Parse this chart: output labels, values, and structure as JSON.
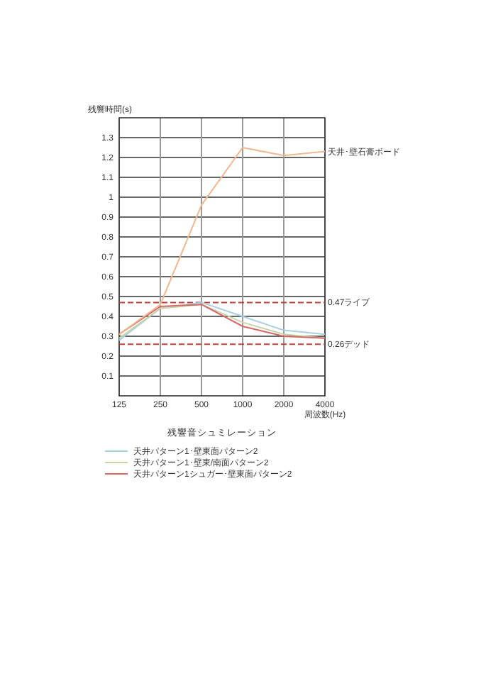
{
  "chart_data": {
    "type": "line",
    "title": "残響音シュミレーション",
    "ylabel": "残響時間(s)",
    "xlabel": "周波数(Hz)",
    "x": [
      125,
      250,
      500,
      1000,
      2000,
      4000
    ],
    "log": "x",
    "xlim": [
      125,
      4000
    ],
    "xticks": [
      125,
      250,
      500,
      1000,
      2000,
      4000
    ],
    "ylim": [
      0,
      1.4
    ],
    "yticks": [
      0.1,
      0.2,
      0.3,
      0.4,
      0.5,
      0.6,
      0.7,
      0.8,
      0.9,
      1,
      1.1,
      1.2,
      1.3
    ],
    "grid": true,
    "legend": "bottom",
    "marker": "none",
    "line_style": "solid",
    "series": [
      {
        "name": "天井パターン1･壁東面パターン2",
        "color": "#a8d0e0",
        "values": [
          0.28,
          0.44,
          0.47,
          0.4,
          0.33,
          0.31
        ]
      },
      {
        "name": "天井パターン1･壁東/南面パターン2",
        "color": "#c8d4a8",
        "values": [
          0.29,
          0.44,
          0.46,
          0.37,
          0.31,
          0.29
        ]
      },
      {
        "name": "天井パターン1シュガー･壁東面パターン2",
        "color": "#d86868",
        "values": [
          0.31,
          0.45,
          0.46,
          0.35,
          0.3,
          0.29
        ]
      },
      {
        "color": "#f0b890",
        "values": [
          0.31,
          0.46,
          0.96,
          1.25,
          1.21,
          1.23
        ]
      }
    ],
    "annotations": [
      "天井･壁石膏ボード"
    ],
    "ref_lines": [
      {
        "axis": "y",
        "value": 0.47,
        "label": "0.47ライブ",
        "color": "#c04040",
        "line_style": "dashed"
      },
      {
        "axis": "y",
        "value": 0.26,
        "label": "0.26デッド",
        "color": "#c04040",
        "line_style": "dashed"
      }
    ]
  }
}
